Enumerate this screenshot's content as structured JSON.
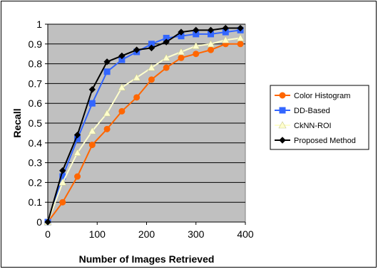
{
  "chart_data": {
    "type": "line",
    "xlabel": "Number of Images Retrieved",
    "ylabel": "Recall",
    "xlim": [
      0,
      400
    ],
    "ylim": [
      0,
      1
    ],
    "x_ticks": [
      "0",
      "100",
      "200",
      "300",
      "400"
    ],
    "y_ticks": [
      "0",
      "0.1",
      "0.2",
      "0.3",
      "0.4",
      "0.5",
      "0.6",
      "0.7",
      "0.8",
      "0.9",
      "1"
    ],
    "grid": true,
    "legend_position": "right",
    "plot_background": "#c0c0c0",
    "x": [
      0,
      30,
      60,
      90,
      120,
      150,
      180,
      210,
      240,
      270,
      300,
      330,
      360,
      390
    ],
    "series": [
      {
        "name": "Color Histogram",
        "color": "#ff6600",
        "marker": "circle",
        "values": [
          0,
          0.1,
          0.23,
          0.39,
          0.47,
          0.56,
          0.63,
          0.72,
          0.78,
          0.83,
          0.85,
          0.87,
          0.9,
          0.9
        ]
      },
      {
        "name": "DD-Based",
        "color": "#3366ff",
        "marker": "square",
        "values": [
          0,
          0.23,
          0.42,
          0.6,
          0.76,
          0.82,
          0.86,
          0.9,
          0.93,
          0.94,
          0.95,
          0.95,
          0.96,
          0.97
        ]
      },
      {
        "name": "CkNN-ROI",
        "color": "#ffffcc",
        "marker": "triangle",
        "values": [
          0,
          0.2,
          0.35,
          0.46,
          0.55,
          0.68,
          0.73,
          0.78,
          0.83,
          0.86,
          0.89,
          0.9,
          0.92,
          0.93
        ]
      },
      {
        "name": "Proposed Method",
        "color": "#000000",
        "marker": "diamond",
        "values": [
          0,
          0.26,
          0.44,
          0.67,
          0.81,
          0.84,
          0.87,
          0.88,
          0.91,
          0.96,
          0.97,
          0.97,
          0.98,
          0.98
        ]
      }
    ]
  }
}
